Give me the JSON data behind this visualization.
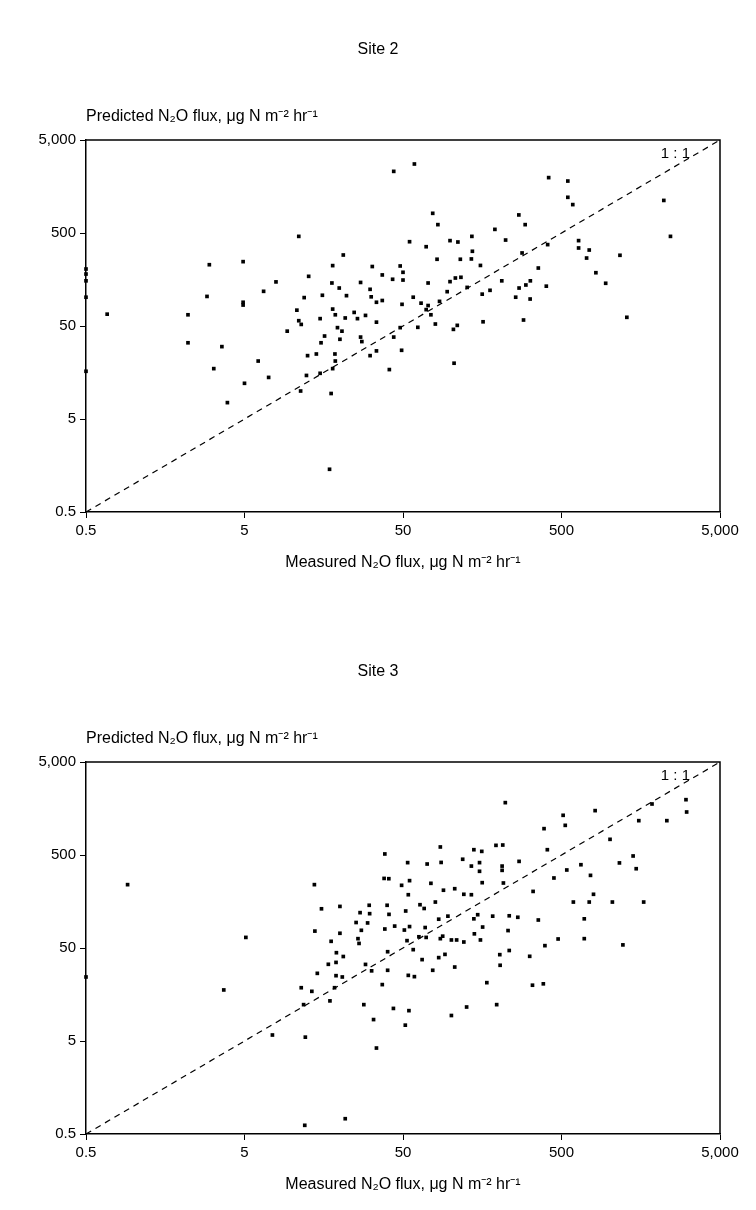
{
  "chart_data": [
    {
      "type": "scatter",
      "title": "Site 2",
      "xlabel": "Measured N₂O flux, μg N m⁻² hr⁻¹",
      "ylabel": "Predicted N₂O flux, μg N m⁻² hr⁻¹",
      "log": "xy",
      "grid": false,
      "legend": false,
      "marker": "square",
      "xlim": [
        0.5,
        5000
      ],
      "ylim": [
        0.5,
        5000
      ],
      "xticks": [
        0.5,
        5,
        50,
        500,
        {
          "value": 5000,
          "label": "5,000"
        }
      ],
      "yticks": [
        0.5,
        5,
        50,
        500,
        {
          "value": 5000,
          "label": "5,000"
        }
      ],
      "annotations": [
        "1 : 1"
      ],
      "series": [
        {
          "type": "scatter",
          "color": "#000000",
          "x": [
            43.7,
            11,
            21,
            3.0,
            4.9,
            18,
            32,
            37,
            43,
            7.9,
            12.7,
            17.8,
            27,
            6.6,
            2.9,
            4.9,
            4.9,
            11.9,
            15.5,
            19.8,
            22,
            31,
            31.5,
            34,
            37,
            2.2,
            0.68,
            10.7,
            11,
            11.4,
            15,
            18,
            18.7,
            21.6,
            24.6,
            25.8,
            29,
            34,
            9.3,
            19.3,
            20.6,
            16,
            20,
            15.2,
            27,
            27.5,
            43.7,
            2.2,
            3.6,
            34,
            31,
            12.5,
            14.2,
            18.6,
            6.1,
            18.7,
            3.2,
            18,
            41,
            7.1,
            12.3,
            15,
            5,
            11.3,
            17.6,
            3.9,
            17.2,
            0.5,
            0.5,
            0.5,
            0.5,
            0.5,
            59,
            415,
            548,
            548,
            589,
            2210,
            2435,
            77,
            83,
            269,
            295,
            190,
            222,
            136,
            55,
            70,
            99,
            111,
            137,
            82,
            115,
            135,
            154,
            282,
            409,
            641,
            641,
            748,
            720,
            1169,
            824,
            950,
            1292,
            48,
            50,
            50,
            72,
            99,
            107,
            116,
            127,
            210,
            270,
            298,
            318,
            357,
            401,
            158,
            177,
            95,
            257,
            317,
            58,
            65,
            49.3,
            72,
            85,
            70,
            75,
            80,
            62,
            48,
            49,
            105,
            104,
            110,
            160,
            288
          ],
          "values": [
            2300,
            460,
            290,
            228,
            246,
            223,
            218,
            177,
            159,
            149,
            171,
            145,
            147,
            118,
            104,
            84,
            90,
            101,
            107,
            128,
            106,
            124,
            103,
            90,
            94,
            66,
            67,
            74,
            57,
            52,
            60,
            76,
            66,
            61,
            70,
            60,
            65,
            55,
            44,
            48,
            44,
            39,
            36,
            33,
            38,
            34,
            38,
            33,
            30,
            27,
            24,
            24,
            25,
            25,
            21,
            21,
            17.4,
            17.4,
            17,
            14,
            14.7,
            15.5,
            12.1,
            10,
            9.4,
            7.5,
            1.44,
            205,
            181,
            153,
            102,
            16.3,
            2760,
            1970,
            1810,
            1210,
            1010,
            1120,
            460,
            814,
            615,
            782,
            615,
            547,
            420,
            460,
            403,
            356,
            414,
            400,
            318,
            261,
            261,
            263,
            224,
            305,
            375,
            414,
            345,
            328,
            269,
            288,
            187,
            144,
            62,
            221,
            189,
            156,
            145,
            150,
            164,
            167,
            130,
            153,
            128,
            138,
            153,
            210,
            134,
            110,
            121,
            117,
            102,
            97.5,
            102,
            88,
            85.5,
            83,
            92,
            75,
            66,
            52.5,
            48.4,
            48,
            27.4,
            19.9,
            46,
            50.8,
            55.5,
            58
          ]
        },
        {
          "type": "line",
          "color": "#000000",
          "line_style": "dashed",
          "marker": "none",
          "x": [
            0.5,
            5000
          ],
          "values": [
            0.5,
            5000
          ]
        }
      ]
    },
    {
      "type": "scatter",
      "title": "Site 3",
      "xlabel": "Measured N₂O flux, μg N m⁻² hr⁻¹",
      "ylabel": "Predicted N₂O flux, μg N m⁻² hr⁻¹",
      "log": "xy",
      "grid": false,
      "legend": false,
      "marker": "square",
      "xlim": [
        0.5,
        5000
      ],
      "ylim": [
        0.5,
        5000
      ],
      "xticks": [
        0.5,
        5,
        50,
        500,
        {
          "value": 5000,
          "label": "5,000"
        }
      ],
      "yticks": [
        0.5,
        5,
        50,
        500,
        {
          "value": 5000,
          "label": "5,000"
        }
      ],
      "annotations": [
        "1 : 1"
      ],
      "series": [
        {
          "type": "scatter",
          "color": "#000000",
          "x": [
            0.915,
            5.1,
            3.7,
            7.5,
            12.1,
            12,
            21.6,
            0.5,
            13.8,
            15.3,
            20,
            13.9,
            20,
            17.6,
            19,
            21,
            18.9,
            16.9,
            14.4,
            18.9,
            20.7,
            11.4,
            13.3,
            18.5,
            11.8,
            17.3,
            38.4,
            38,
            30.6,
            26.8,
            30.8,
            39.7,
            40.8,
            25.3,
            29.9,
            27.3,
            26,
            26.4,
            38.4,
            44.3,
            40,
            29,
            31.7,
            40,
            37,
            28.3,
            43.5,
            32.6,
            34,
            221,
            512,
            815,
            528,
            388,
            1012,
            1862,
            3050,
            3080,
            1537,
            2310,
            86,
            140,
            157,
            193,
            213,
            407,
            270,
            53.5,
            71,
            87,
            119,
            135,
            152,
            152,
            211,
            211,
            158,
            215,
            331,
            448,
            540,
            663,
            762,
            1160,
            1415,
            1480,
            796,
            594,
            748,
            1047,
            1650,
            696,
            696,
            1220,
            476,
            393,
            315,
            328,
            384,
            357,
            230,
            234,
            204,
            205,
            169,
            195,
            126,
            101,
            54.5,
            51.7,
            77,
            106,
            54,
            59,
            66,
            84,
            92,
            58,
            53,
            63,
            70,
            69,
            55,
            51,
            86,
            89,
            101,
            109,
            121,
            141,
            154,
            159,
            140,
            148,
            184,
            234,
            265,
            84,
            96,
            80,
            64,
            68,
            52,
            54,
            49,
            55,
            75,
            90,
            106,
            121,
            135,
            40.7
          ],
          "values": [
            240,
            65,
            17.7,
            5.8,
            5.5,
            0.62,
            0.73,
            24.4,
            240,
            132,
            140,
            76,
            72,
            59,
            44.5,
            40.5,
            35,
            33.4,
            26.7,
            25.2,
            24.4,
            18.7,
            17.1,
            18.7,
            12.3,
            13.5,
            513,
            280,
            144,
            120,
            117,
            144,
            115,
            94,
            93,
            77.5,
            63,
            56,
            80,
            86,
            45.6,
            33.3,
            28.4,
            28.8,
            20.2,
            12.3,
            11.2,
            8.5,
            4.2,
            1828,
            1336,
            1500,
            1042,
            960,
            737,
            1768,
            1967,
            1450,
            1170,
            1170,
            610,
            570,
            547,
            635,
            640,
            570,
            427,
            414,
            400,
            416,
            450,
            380,
            414,
            334,
            380,
            342,
            252,
            250,
            203,
            283,
            345,
            393,
            302,
            411,
            488,
            356,
            189,
            156,
            156,
            156,
            156,
            103,
            63,
            54,
            62.5,
            53,
            40.7,
            19.9,
            20.6,
            100,
            77,
            47,
            42.4,
            32.6,
            21.2,
            12.3,
            11.6,
            9.4,
            10.6,
            7.4,
            28.8,
            31.2,
            25.4,
            24.6,
            37.5,
            39.4,
            42.7,
            48,
            60,
            66,
            65,
            83,
            85,
            78,
            63,
            67,
            61,
            61,
            58,
            71,
            61,
            84,
            103,
            114,
            110,
            111,
            107,
            102,
            110,
            156,
            146,
            133,
            125,
            187,
            236,
            265,
            248,
            209,
            217,
            189,
            187,
            278
          ]
        },
        {
          "type": "line",
          "color": "#000000",
          "line_style": "dashed",
          "marker": "none",
          "x": [
            0.5,
            5000
          ],
          "values": [
            0.5,
            5000
          ]
        }
      ]
    }
  ]
}
